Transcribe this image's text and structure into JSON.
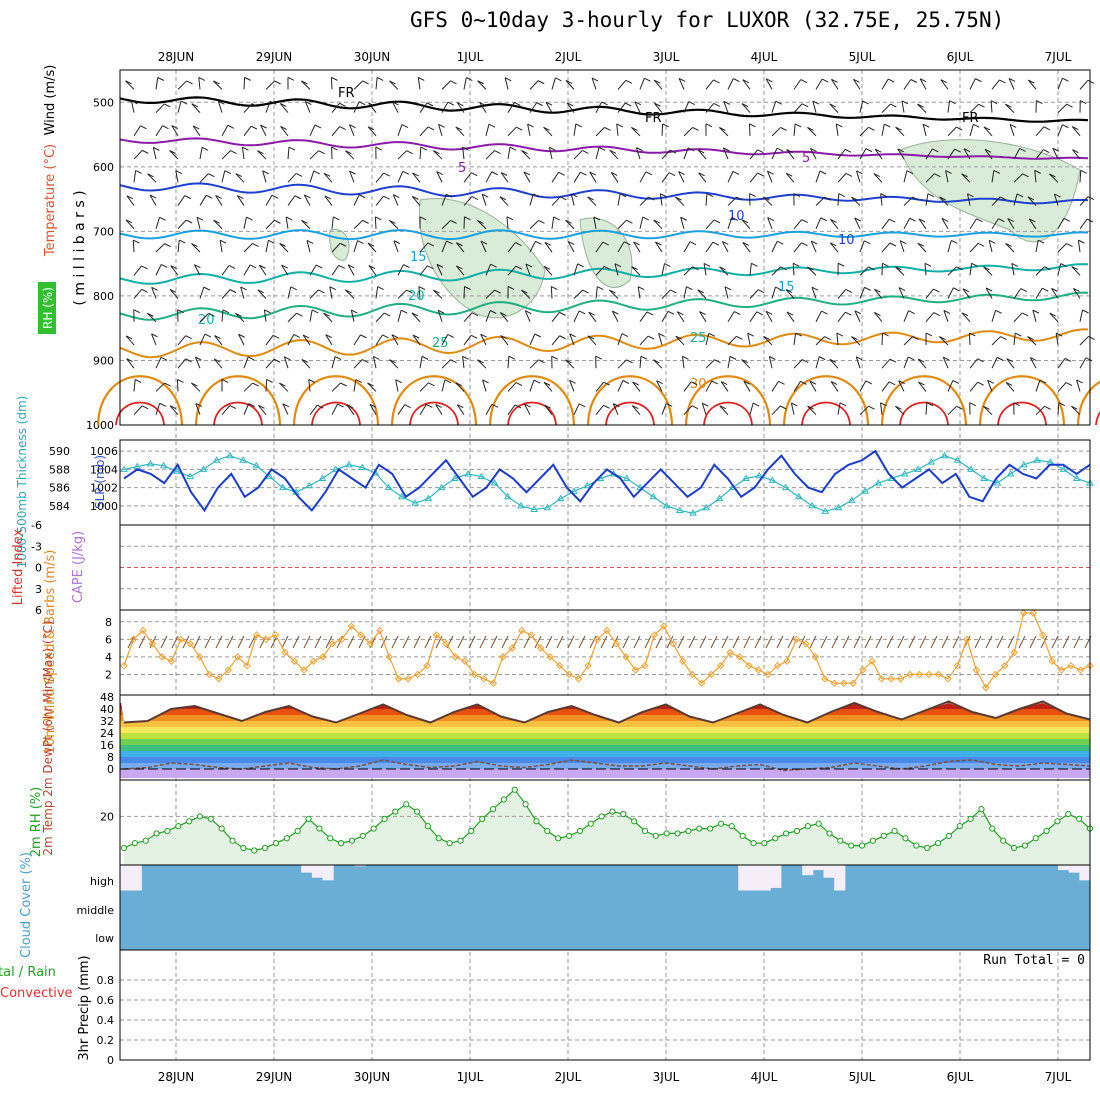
{
  "title": "GFS 0~10day 3-hourly for LUXOR (32.75E, 25.75N)",
  "dates": [
    "28JUN",
    "29JUN",
    "30JUN",
    "1JUL",
    "2JUL",
    "3JUL",
    "4JUL",
    "5JUL",
    "6JUL",
    "7JUL"
  ],
  "colors": {
    "black": "#000000",
    "purple": "#8a1aa8",
    "blue": "#1f3fd0",
    "cyan": "#1aa0e0",
    "teal": "#10b0a8",
    "green": "#20b080",
    "orange": "#e08a10",
    "red": "#e02020",
    "rh_fill": "#d8ecd8",
    "slp": "#1a3ccc",
    "thick": "#30b8c0",
    "wind": "#f0a030",
    "rh2m": "#20a020",
    "rh2m_fill": "#e4f2e4",
    "cloud": "#6aaed6",
    "cloud_empty": "#f5eef8"
  },
  "chart_data": [
    {
      "type": "line",
      "name": "upper-air",
      "title": "Temperature / Wind / RH cross-section",
      "ylabel": "( m i l l i b a r s )",
      "ylim": [
        1000,
        450
      ],
      "yticks": [
        "500",
        "600",
        "700",
        "800",
        "900",
        "1000"
      ],
      "side_labels": [
        "Wind (m/s)",
        "Temperature (°C)",
        "RH (%)"
      ],
      "isotherm_labels": [
        "FR",
        "FR",
        "FR",
        "5",
        "5",
        "10",
        "10",
        "15",
        "15",
        "20",
        "20",
        "25",
        "25",
        "30",
        "30"
      ]
    },
    {
      "type": "line",
      "name": "slp-thickness",
      "ylabel_left": "1000-500mb Thickness (dm)",
      "ylabel_right": "SLP (mb)",
      "left_ticks": [
        "584",
        "586",
        "588",
        "590"
      ],
      "right_ticks": [
        "1000",
        "1002",
        "1004",
        "1006"
      ],
      "series": [
        {
          "name": "SLP (mb)",
          "values": [
            1003.0,
            1004.0,
            1003.5,
            1002.5,
            1004.5,
            1001.5,
            999.5,
            1002.0,
            1003.5,
            1001.0,
            1002.0,
            1004.0,
            1003.0,
            1001.0,
            999.5,
            1001.5,
            1004.0,
            1003.0,
            1002.0,
            1004.5,
            1003.5,
            1001.0,
            1002.0,
            1003.5,
            1005.0,
            1003.0,
            1001.0,
            1002.0,
            1004.0,
            1003.0,
            1001.5,
            1003.0,
            1004.5,
            1002.0,
            1000.5,
            1002.5,
            1004.0,
            1003.0,
            1001.0,
            1002.5,
            1004.0,
            1002.5,
            1001.0,
            1002.0,
            1004.5,
            1003.0,
            1001.0,
            1002.0,
            1004.0,
            1005.5,
            1003.5,
            1002.0,
            1001.5,
            1003.5,
            1004.5,
            1005.0,
            1006.0,
            1003.5,
            1002.0,
            1003.0,
            1004.0,
            1002.5,
            1003.5,
            1001.0,
            1000.5,
            1003.0,
            1004.5,
            1003.5,
            1003.0,
            1004.5,
            1004.5,
            1003.5,
            1004.5
          ]
        },
        {
          "name": "1000-500mb Thickness (dm)",
          "values": [
            588.0,
            588.3,
            588.6,
            588.4,
            587.8,
            587.2,
            588.0,
            589.0,
            589.5,
            589.0,
            588.4,
            587.2,
            586.0,
            585.5,
            586.2,
            587.0,
            588.0,
            588.5,
            588.2,
            587.6,
            586.0,
            585.0,
            584.3,
            584.8,
            586.0,
            587.0,
            587.5,
            587.2,
            586.5,
            585.0,
            584.0,
            583.6,
            583.8,
            584.8,
            585.6,
            586.2,
            587.0,
            587.5,
            587.0,
            586.0,
            585.0,
            584.0,
            583.5,
            583.2,
            583.8,
            584.8,
            586.0,
            587.0,
            587.3,
            586.8,
            586.0,
            585.0,
            584.0,
            583.4,
            583.8,
            584.6,
            585.6,
            586.5,
            587.0,
            587.5,
            588.0,
            588.8,
            589.5,
            589.0,
            588.0,
            587.0,
            586.5,
            587.5,
            588.5,
            589.0,
            588.8,
            588.0,
            587.0,
            586.5
          ]
        }
      ]
    },
    {
      "type": "line",
      "name": "cape-lifted",
      "ylabel_left": "Lifted Index",
      "ylabel_right": "CAPE (J/kg)",
      "left_ticks": [
        "-6",
        "-3",
        "0",
        "3",
        "6"
      ],
      "series": []
    },
    {
      "type": "line",
      "name": "wind10m",
      "ylabel": "10m Wind Speed & Barbs (m/s)",
      "ylim": [
        0,
        9
      ],
      "yticks": [
        "2",
        "4",
        "6",
        "8"
      ],
      "series": [
        {
          "name": "10m wind speed (m/s)",
          "values": [
            3.0,
            6.0,
            7.0,
            5.5,
            4.0,
            3.5,
            6.0,
            5.5,
            4.0,
            2.0,
            1.5,
            2.5,
            4.0,
            3.0,
            6.5,
            6.0,
            6.5,
            4.5,
            3.5,
            2.5,
            3.5,
            4.0,
            5.5,
            6.0,
            7.5,
            6.5,
            5.5,
            7.0,
            4.0,
            1.5,
            1.5,
            2.0,
            3.0,
            6.5,
            5.5,
            4.0,
            3.5,
            2.0,
            1.5,
            1.0,
            4.0,
            5.0,
            7.0,
            6.5,
            5.0,
            4.0,
            3.0,
            2.0,
            1.5,
            3.0,
            6.0,
            7.0,
            5.5,
            4.0,
            2.5,
            3.0,
            6.5,
            7.5,
            5.5,
            3.5,
            2.0,
            1.0,
            2.0,
            3.0,
            4.5,
            4.0,
            3.0,
            2.5,
            2.0,
            3.0,
            3.5,
            6.0,
            5.5,
            4.0,
            1.5,
            1.0,
            1.0,
            1.0,
            2.5,
            3.5,
            1.5,
            1.5,
            1.5,
            2.0,
            2.0,
            2.0,
            2.0,
            1.5,
            3.0,
            6.0,
            2.5,
            0.5,
            2.0,
            3.0,
            4.5,
            9.0,
            9.0,
            6.5,
            3.5,
            2.5,
            3.0,
            2.5,
            3.0
          ]
        }
      ]
    },
    {
      "type": "area",
      "name": "temp2m",
      "ylabel": "2m Temp 2m DewPt (6hr Min/Max) (°C)",
      "ylim": [
        -6,
        48
      ],
      "yticks": [
        "0",
        "8",
        "16",
        "24",
        "32",
        "40",
        "48"
      ],
      "series": [
        {
          "name": "2m Temp max (°C)",
          "values": [
            31,
            32,
            40,
            42,
            37,
            32,
            38,
            42,
            35,
            31,
            37,
            43,
            36,
            31,
            38,
            43,
            35,
            31,
            38,
            42,
            36,
            31,
            38,
            43,
            35,
            31,
            37,
            43,
            36,
            31,
            38,
            44,
            38,
            33,
            39,
            45,
            38,
            34,
            40,
            45,
            37,
            33
          ]
        },
        {
          "name": "2m DewPt (°C)",
          "values": [
            0,
            1,
            4,
            3,
            1,
            0,
            2,
            4,
            1,
            0,
            2,
            6,
            3,
            1,
            2,
            5,
            2,
            1,
            3,
            6,
            4,
            2,
            2,
            4,
            2,
            0,
            2,
            3,
            -1,
            0,
            1,
            4,
            2,
            0,
            2,
            5,
            6,
            3,
            2,
            4,
            3,
            2
          ]
        }
      ]
    },
    {
      "type": "area",
      "name": "rh2m",
      "ylabel": "2m RH (%)",
      "ylim": [
        0,
        35
      ],
      "yticks": [
        "20"
      ],
      "series": [
        {
          "name": "2m RH (%)",
          "values": [
            7,
            9,
            10,
            13,
            14,
            16,
            18,
            20,
            19,
            15,
            10,
            7,
            6,
            7,
            9,
            11,
            14,
            19,
            15,
            11,
            9,
            10,
            12,
            15,
            19,
            22,
            25,
            22,
            16,
            11,
            9,
            10,
            14,
            19,
            23,
            27,
            31,
            25,
            18,
            14,
            11,
            12,
            14,
            17,
            20,
            22,
            21,
            18,
            14,
            12,
            13,
            13,
            14,
            15,
            15,
            17,
            16,
            12,
            9,
            9,
            11,
            13,
            14,
            16,
            17,
            13,
            10,
            8,
            8,
            10,
            12,
            14,
            11,
            8,
            7,
            9,
            12,
            16,
            19,
            23,
            15,
            10,
            7,
            8,
            11,
            14,
            18,
            21,
            19,
            15
          ]
        }
      ]
    },
    {
      "type": "area",
      "name": "cloud-cover",
      "ylabel": "Cloud Cover (%)",
      "yticks": [
        "high",
        "middle",
        "low"
      ],
      "series": [
        {
          "name": "high cloud (%)",
          "values": [
            100,
            100,
            0,
            0,
            0,
            0,
            0,
            0,
            0,
            0,
            0,
            0,
            0,
            0,
            0,
            0,
            0,
            30,
            50,
            60,
            0,
            0,
            5,
            0,
            0,
            0,
            0,
            0,
            0,
            0,
            0,
            0,
            0,
            0,
            0,
            0,
            0,
            0,
            0,
            0,
            0,
            0,
            0,
            0,
            0,
            0,
            0,
            0,
            0,
            0,
            0,
            0,
            0,
            0,
            0,
            0,
            0,
            0,
            100,
            100,
            100,
            90,
            0,
            0,
            40,
            20,
            50,
            100,
            0,
            0,
            0,
            0,
            0,
            0,
            0,
            0,
            0,
            0,
            0,
            0,
            0,
            0,
            0,
            0,
            0,
            0,
            0,
            0,
            20,
            30,
            60
          ]
        }
      ]
    },
    {
      "type": "bar",
      "name": "precip3h",
      "ylabel": "3hr Precip (mm)",
      "ylabel_left": "Total / Rain Convective",
      "ylim": [
        0,
        1
      ],
      "yticks": [
        "0",
        "0.2",
        "0.4",
        "0.6",
        "0.8"
      ],
      "run_total": "Run Total = 0",
      "values": []
    }
  ]
}
